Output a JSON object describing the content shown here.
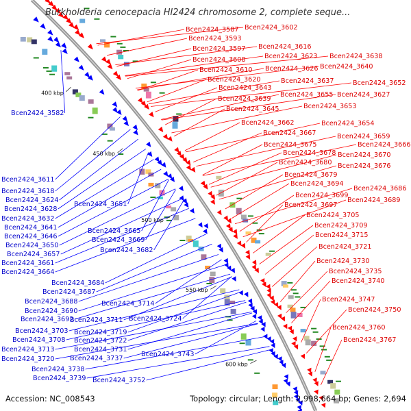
{
  "title": "Burkholderia cenocepacia HI2424 chromosome 2, complete seque...",
  "footer": {
    "accession": "Accession: NC_008543",
    "summary": "Topology: circular; Length: 2,998,664 bp; Genes: 2,694"
  },
  "ticks": [
    "400 kbp",
    "450 kbp",
    "500 kbp",
    "550 kbp",
    "600 kbp"
  ],
  "colors": {
    "plus_strand": "#0000ff",
    "minus_strand": "#ff0000",
    "backbone": "#999999",
    "label_plus": "#0000cc",
    "label_minus": "#dd0000"
  },
  "labels_left": [
    "Bcen2424_3582",
    "Bcen2424_3611",
    "Bcen2424_3618",
    "Bcen2424_3624",
    "Bcen2424_3628",
    "Bcen2424_3632",
    "Bcen2424_3641",
    "Bcen2424_3646",
    "Bcen2424_3650",
    "Bcen2424_3657",
    "Bcen2424_3661",
    "Bcen2424_3664",
    "Bcen2424_3651",
    "Bcen2424_3665",
    "Bcen2424_3669",
    "Bcen2424_3682",
    "Bcen2424_3684",
    "Bcen2424_3687",
    "Bcen2424_3688",
    "Bcen2424_3690",
    "Bcen2424_3692",
    "Bcen2424_3714",
    "Bcen2424_3711",
    "Bcen2424_3724",
    "Bcen2424_3703",
    "Bcen2424_3719",
    "Bcen2424_3708",
    "Bcen2424_3722",
    "Bcen2424_3713",
    "Bcen2424_3731",
    "Bcen2424_3720",
    "Bcen2424_3737",
    "Bcen2424_3743",
    "Bcen2424_3738",
    "Bcen2424_3739",
    "Bcen2424_3752"
  ],
  "labels_right": [
    "Bcen2424_3587",
    "Bcen2424_3602",
    "Bcen2424_3593",
    "Bcen2424_3597",
    "Bcen2424_3616",
    "Bcen2424_3608",
    "Bcen2424_3623",
    "Bcen2424_3638",
    "Bcen2424_3610",
    "Bcen2424_3626",
    "Bcen2424_3640",
    "Bcen2424_3620",
    "Bcen2424_3637",
    "Bcen2424_3652",
    "Bcen2424_3643",
    "Bcen2424_3655",
    "Bcen2424_3627",
    "Bcen2424_3639",
    "Bcen2424_3653",
    "Bcen2424_3645",
    "Bcen2424_3662",
    "Bcen2424_3654",
    "Bcen2424_3667",
    "Bcen2424_3659",
    "Bcen2424_3675",
    "Bcen2424_3666",
    "Bcen2424_3678",
    "Bcen2424_3670",
    "Bcen2424_3680",
    "Bcen2424_3676",
    "Bcen2424_3679",
    "Bcen2424_3694",
    "Bcen2424_3686",
    "Bcen2424_3699",
    "Bcen2424_3689",
    "Bcen2424_3697",
    "Bcen2424_3705",
    "Bcen2424_3709",
    "Bcen2424_3715",
    "Bcen2424_3721",
    "Bcen2424_3730",
    "Bcen2424_3735",
    "Bcen2424_3740",
    "Bcen2424_3747",
    "Bcen2424_3750",
    "Bcen2424_3760",
    "Bcen2424_3767"
  ]
}
